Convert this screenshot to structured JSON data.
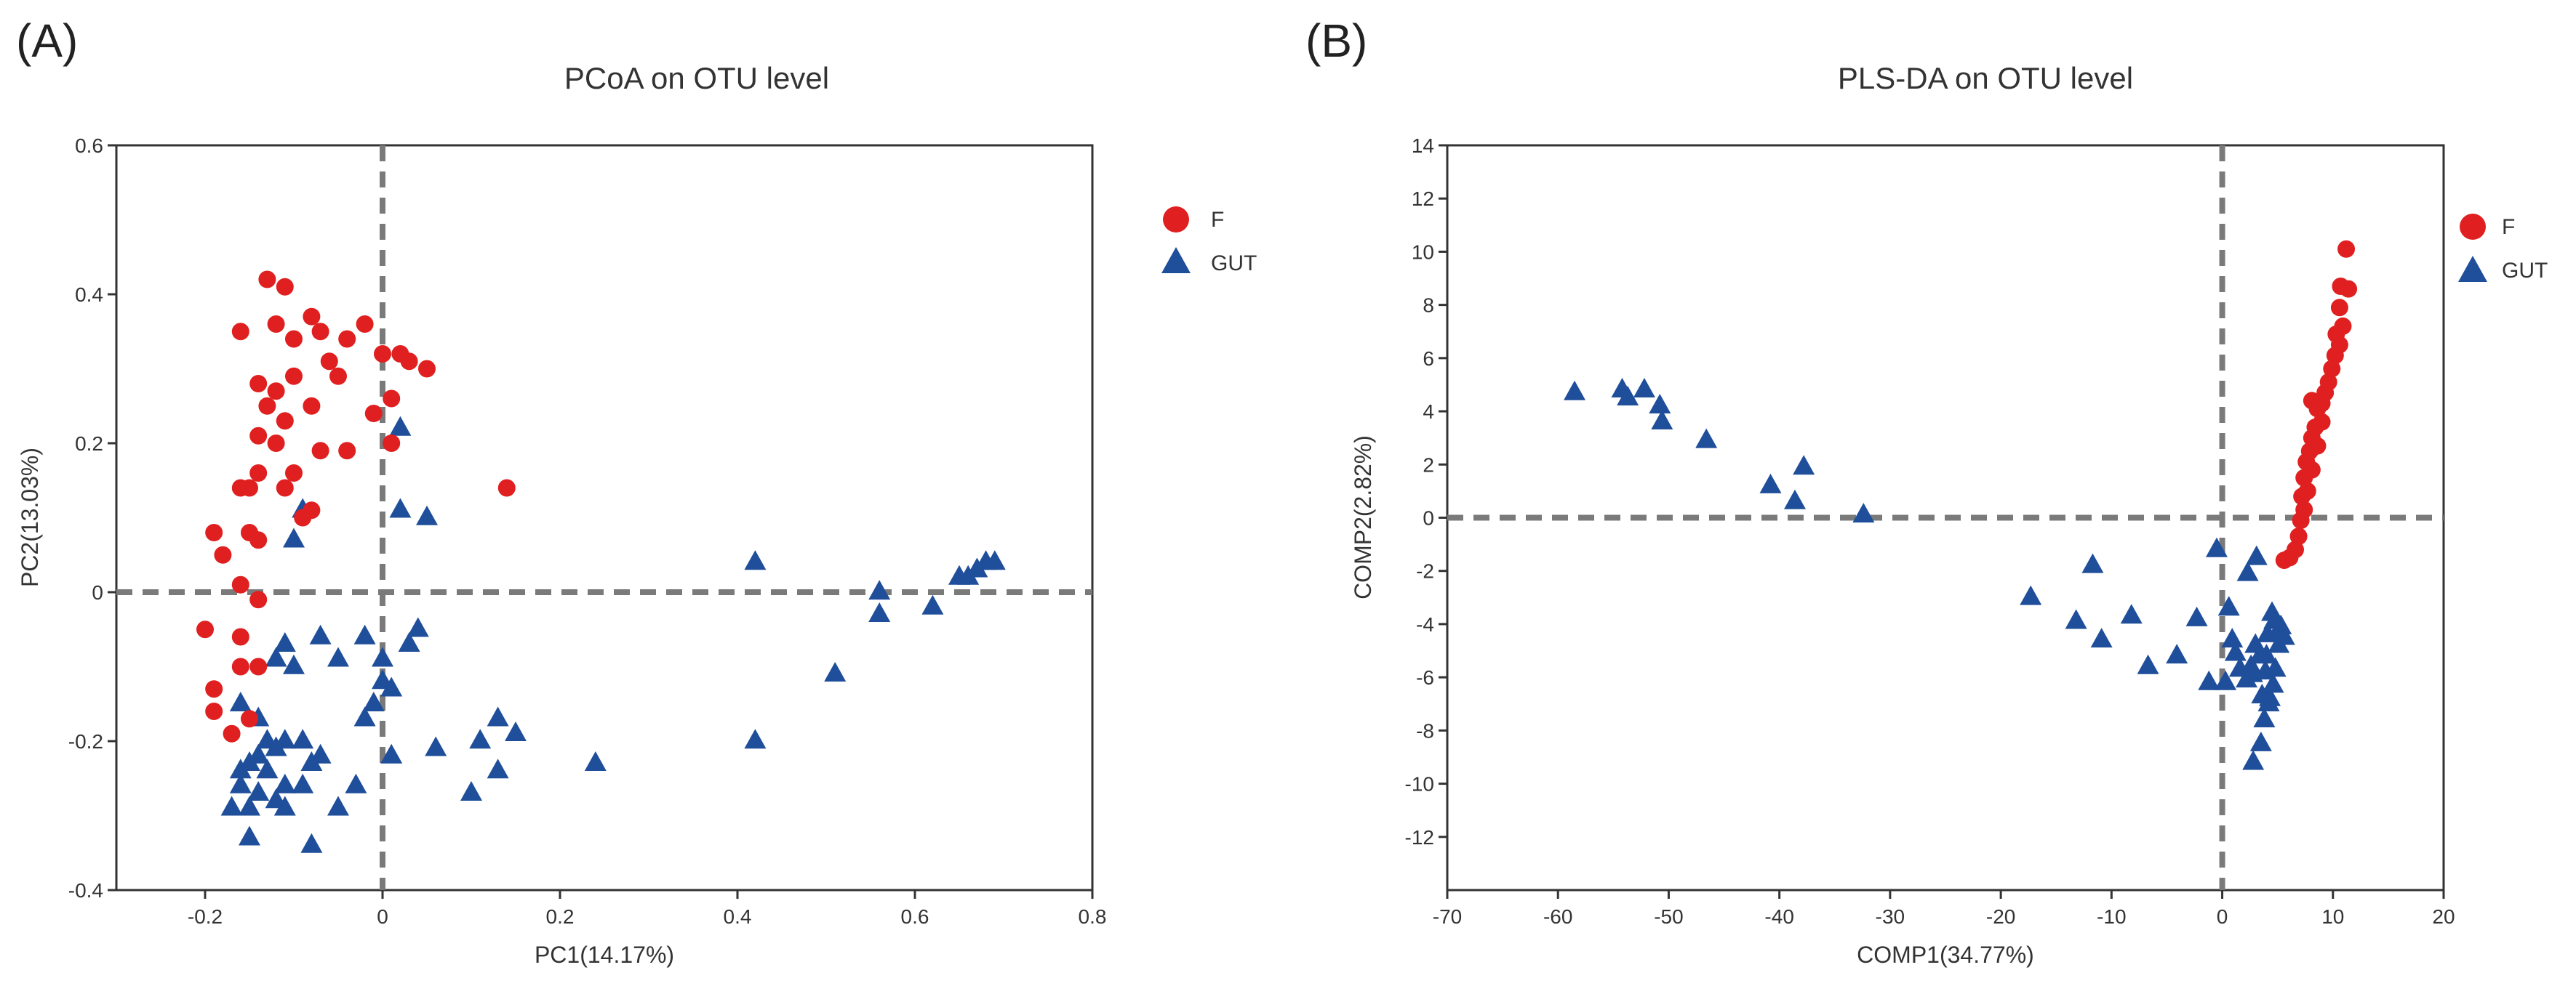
{
  "colors": {
    "F": "#e02020",
    "GUT": "#1f4e9a",
    "axis": "#333333",
    "ref_line": "#7a7a7a"
  },
  "chart_data": [
    {
      "panel_label": "(A)",
      "type": "scatter",
      "title": "PCoA on OTU level",
      "xlabel": "PC1(14.17%)",
      "ylabel": "PC2(13.03%)",
      "xlim": [
        -0.3,
        0.8
      ],
      "ylim": [
        -0.4,
        0.6
      ],
      "xticks": [
        -0.2,
        0,
        0.2,
        0.4,
        0.6,
        0.8
      ],
      "yticks": [
        -0.4,
        -0.2,
        0,
        0.2,
        0.4,
        0.6
      ],
      "xtick_labels": [
        "-0.2",
        "0",
        "0.2",
        "0.4",
        "0.6",
        "0.8"
      ],
      "ytick_labels": [
        "-0.4",
        "-0.2",
        "0",
        "0.2",
        "0.4",
        "0.6"
      ],
      "reference_lines": {
        "x": 0,
        "y": 0
      },
      "legend": {
        "position": "outside-top-right",
        "entries": [
          {
            "name": "F",
            "marker": "circle"
          },
          {
            "name": "GUT",
            "marker": "triangle"
          }
        ]
      },
      "series": [
        {
          "name": "F",
          "marker": "circle",
          "points": [
            [
              -0.13,
              0.42
            ],
            [
              -0.11,
              0.41
            ],
            [
              -0.08,
              0.37
            ],
            [
              -0.07,
              0.35
            ],
            [
              -0.02,
              0.36
            ],
            [
              -0.12,
              0.36
            ],
            [
              -0.1,
              0.34
            ],
            [
              -0.04,
              0.34
            ],
            [
              -0.16,
              0.35
            ],
            [
              -0.14,
              0.28
            ],
            [
              -0.1,
              0.29
            ],
            [
              -0.06,
              0.31
            ],
            [
              -0.05,
              0.29
            ],
            [
              0.0,
              0.32
            ],
            [
              0.02,
              0.32
            ],
            [
              0.03,
              0.31
            ],
            [
              0.05,
              0.3
            ],
            [
              -0.12,
              0.27
            ],
            [
              -0.13,
              0.25
            ],
            [
              -0.11,
              0.23
            ],
            [
              -0.08,
              0.25
            ],
            [
              -0.01,
              0.24
            ],
            [
              0.01,
              0.26
            ],
            [
              -0.14,
              0.21
            ],
            [
              -0.12,
              0.2
            ],
            [
              -0.07,
              0.19
            ],
            [
              -0.04,
              0.19
            ],
            [
              0.01,
              0.2
            ],
            [
              -0.1,
              0.16
            ],
            [
              -0.14,
              0.16
            ],
            [
              -0.16,
              0.14
            ],
            [
              -0.15,
              0.14
            ],
            [
              -0.11,
              0.14
            ],
            [
              -0.08,
              0.11
            ],
            [
              -0.09,
              0.1
            ],
            [
              -0.19,
              0.08
            ],
            [
              -0.15,
              0.08
            ],
            [
              -0.14,
              0.07
            ],
            [
              -0.18,
              0.05
            ],
            [
              -0.16,
              0.01
            ],
            [
              -0.14,
              -0.01
            ],
            [
              -0.2,
              -0.05
            ],
            [
              -0.16,
              -0.06
            ],
            [
              -0.14,
              -0.1
            ],
            [
              -0.16,
              -0.1
            ],
            [
              -0.19,
              -0.13
            ],
            [
              -0.19,
              -0.16
            ],
            [
              -0.17,
              -0.19
            ],
            [
              -0.15,
              -0.17
            ],
            [
              0.14,
              0.14
            ]
          ]
        },
        {
          "name": "GUT",
          "marker": "triangle",
          "points": [
            [
              0.02,
              0.22
            ],
            [
              0.02,
              0.11
            ],
            [
              0.05,
              0.1
            ],
            [
              -0.09,
              0.11
            ],
            [
              -0.1,
              0.07
            ],
            [
              -0.11,
              -0.07
            ],
            [
              -0.07,
              -0.06
            ],
            [
              -0.12,
              -0.09
            ],
            [
              -0.1,
              -0.1
            ],
            [
              -0.05,
              -0.09
            ],
            [
              -0.02,
              -0.06
            ],
            [
              0.0,
              -0.12
            ],
            [
              0.01,
              -0.13
            ],
            [
              -0.01,
              -0.15
            ],
            [
              -0.02,
              -0.17
            ],
            [
              0.03,
              -0.07
            ],
            [
              0.04,
              -0.05
            ],
            [
              0.0,
              -0.09
            ],
            [
              0.42,
              0.04
            ],
            [
              0.56,
              0.0
            ],
            [
              0.56,
              -0.03
            ],
            [
              0.62,
              -0.02
            ],
            [
              0.65,
              0.02
            ],
            [
              0.66,
              0.02
            ],
            [
              0.67,
              0.03
            ],
            [
              0.68,
              0.04
            ],
            [
              0.69,
              0.04
            ],
            [
              0.51,
              -0.11
            ],
            [
              0.42,
              -0.2
            ],
            [
              0.24,
              -0.23
            ],
            [
              0.13,
              -0.17
            ],
            [
              0.15,
              -0.19
            ],
            [
              0.11,
              -0.2
            ],
            [
              0.13,
              -0.24
            ],
            [
              0.1,
              -0.27
            ],
            [
              0.06,
              -0.21
            ],
            [
              0.01,
              -0.22
            ],
            [
              -0.16,
              -0.15
            ],
            [
              -0.14,
              -0.17
            ],
            [
              -0.13,
              -0.2
            ],
            [
              -0.11,
              -0.2
            ],
            [
              -0.09,
              -0.2
            ],
            [
              -0.12,
              -0.21
            ],
            [
              -0.14,
              -0.22
            ],
            [
              -0.15,
              -0.23
            ],
            [
              -0.16,
              -0.24
            ],
            [
              -0.13,
              -0.24
            ],
            [
              -0.11,
              -0.26
            ],
            [
              -0.09,
              -0.26
            ],
            [
              -0.16,
              -0.26
            ],
            [
              -0.14,
              -0.27
            ],
            [
              -0.12,
              -0.28
            ],
            [
              -0.15,
              -0.29
            ],
            [
              -0.17,
              -0.29
            ],
            [
              -0.11,
              -0.29
            ],
            [
              -0.08,
              -0.23
            ],
            [
              -0.07,
              -0.22
            ],
            [
              -0.05,
              -0.29
            ],
            [
              -0.03,
              -0.26
            ],
            [
              -0.15,
              -0.33
            ],
            [
              -0.08,
              -0.34
            ]
          ]
        }
      ]
    },
    {
      "panel_label": "(B)",
      "type": "scatter",
      "title": "PLS-DA on OTU level",
      "xlabel": "COMP1(34.77%)",
      "ylabel": "COMP2(2.82%)",
      "xlim": [
        -70,
        20
      ],
      "ylim": [
        -14,
        14
      ],
      "xticks": [
        -70,
        -60,
        -50,
        -40,
        -30,
        -20,
        -10,
        0,
        10,
        20
      ],
      "yticks": [
        -12,
        -10,
        -8,
        -6,
        -4,
        -2,
        0,
        2,
        4,
        6,
        8,
        10,
        12,
        14
      ],
      "xtick_labels": [
        "-70",
        "-60",
        "-50",
        "-40",
        "-30",
        "-20",
        "-10",
        "0",
        "10",
        "20"
      ],
      "ytick_labels": [
        "-12",
        "-10",
        "-8",
        "-6",
        "-4",
        "-2",
        "0",
        "2",
        "4",
        "6",
        "8",
        "10",
        "12",
        "14"
      ],
      "reference_lines": {
        "x": 0,
        "y": 0
      },
      "legend": {
        "position": "outside-top-right",
        "entries": [
          {
            "name": "F",
            "marker": "circle"
          },
          {
            "name": "GUT",
            "marker": "triangle"
          }
        ]
      },
      "series": [
        {
          "name": "F",
          "marker": "circle",
          "points": [
            [
              11.2,
              10.1
            ],
            [
              11.4,
              8.6
            ],
            [
              10.7,
              8.7
            ],
            [
              10.6,
              7.9
            ],
            [
              10.9,
              7.2
            ],
            [
              10.3,
              6.9
            ],
            [
              10.6,
              6.5
            ],
            [
              10.2,
              6.1
            ],
            [
              9.9,
              5.6
            ],
            [
              9.6,
              5.1
            ],
            [
              9.3,
              4.7
            ],
            [
              9.0,
              4.3
            ],
            [
              8.6,
              4.1
            ],
            [
              8.1,
              4.4
            ],
            [
              9.0,
              3.6
            ],
            [
              8.4,
              3.4
            ],
            [
              8.1,
              3.0
            ],
            [
              8.6,
              2.7
            ],
            [
              7.9,
              2.5
            ],
            [
              7.6,
              2.1
            ],
            [
              8.1,
              1.8
            ],
            [
              7.4,
              1.5
            ],
            [
              7.7,
              1.0
            ],
            [
              7.2,
              0.8
            ],
            [
              7.4,
              0.3
            ],
            [
              7.1,
              -0.1
            ],
            [
              6.9,
              -0.7
            ],
            [
              6.6,
              -1.2
            ],
            [
              6.1,
              -1.5
            ],
            [
              5.6,
              -1.6
            ]
          ]
        },
        {
          "name": "GUT",
          "marker": "triangle",
          "points": [
            [
              -58.5,
              4.7
            ],
            [
              -54.2,
              4.8
            ],
            [
              -52.2,
              4.8
            ],
            [
              -53.7,
              4.5
            ],
            [
              -50.8,
              4.2
            ],
            [
              -50.6,
              3.6
            ],
            [
              -46.6,
              2.9
            ],
            [
              -40.8,
              1.2
            ],
            [
              -37.8,
              1.9
            ],
            [
              -38.6,
              0.6
            ],
            [
              -32.4,
              0.1
            ],
            [
              -17.3,
              -3.0
            ],
            [
              -13.2,
              -3.9
            ],
            [
              -11.7,
              -1.8
            ],
            [
              -8.2,
              -3.7
            ],
            [
              -10.9,
              -4.6
            ],
            [
              -6.7,
              -5.6
            ],
            [
              -4.1,
              -5.2
            ],
            [
              -2.3,
              -3.8
            ],
            [
              -1.2,
              -6.2
            ],
            [
              -0.5,
              -1.2
            ],
            [
              0.3,
              -6.2
            ],
            [
              0.6,
              -3.4
            ],
            [
              0.9,
              -4.6
            ],
            [
              1.2,
              -5.1
            ],
            [
              1.6,
              -5.7
            ],
            [
              2.2,
              -6.1
            ],
            [
              2.7,
              -5.9
            ],
            [
              2.3,
              -2.1
            ],
            [
              2.6,
              -5.6
            ],
            [
              3.1,
              -1.5
            ],
            [
              3.4,
              -5.2
            ],
            [
              3.6,
              -6.7
            ],
            [
              4.1,
              -4.4
            ],
            [
              3.9,
              -5.8
            ],
            [
              4.3,
              -6.8
            ],
            [
              4.5,
              -3.6
            ],
            [
              4.7,
              -3.9
            ],
            [
              5.0,
              -4.3
            ],
            [
              5.3,
              -4.1
            ],
            [
              5.1,
              -4.8
            ],
            [
              4.8,
              -5.7
            ],
            [
              4.6,
              -6.3
            ],
            [
              4.2,
              -7.0
            ],
            [
              3.8,
              -7.6
            ],
            [
              3.5,
              -8.5
            ],
            [
              2.8,
              -9.2
            ],
            [
              5.6,
              -4.5
            ],
            [
              4.0,
              -5.2
            ],
            [
              3.0,
              -4.8
            ]
          ]
        }
      ]
    }
  ]
}
